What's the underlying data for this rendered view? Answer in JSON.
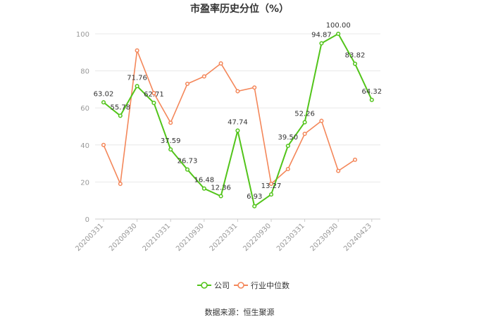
{
  "chart_data": {
    "type": "line",
    "title": "市盈率历史分位（%）",
    "xlabel": "",
    "ylabel": "",
    "ylim": [
      0,
      100
    ],
    "y_ticks": [
      0,
      20,
      40,
      60,
      80,
      100
    ],
    "x_tick_labels": [
      "20200331",
      "20200930",
      "20210331",
      "20210930",
      "20220331",
      "20220930",
      "20230331",
      "20230930",
      "20240423"
    ],
    "grid": true,
    "legend_position": "bottom",
    "series": [
      {
        "name": "公司",
        "color": "#52c41a",
        "values": [
          63.02,
          55.78,
          71.76,
          62.71,
          37.59,
          26.73,
          16.48,
          12.36,
          47.74,
          6.93,
          13.27,
          39.5,
          52.26,
          94.87,
          100.0,
          83.82,
          64.32
        ],
        "labels": [
          "63.02",
          "55.78",
          "71.76",
          "62.71",
          "37.59",
          "26.73",
          "16.48",
          "12.36",
          "47.74",
          "6.93",
          "13.27",
          "39.50",
          "52.26",
          "94.87",
          "100.00",
          "83.82",
          "64.32"
        ]
      },
      {
        "name": "行业中位数",
        "color": "#f4875a",
        "values": [
          40,
          19,
          91,
          68,
          52,
          73,
          77,
          84,
          69,
          71,
          19,
          27,
          46,
          53,
          26,
          32,
          null
        ]
      }
    ]
  },
  "source_text": "数据来源：恒生聚源"
}
